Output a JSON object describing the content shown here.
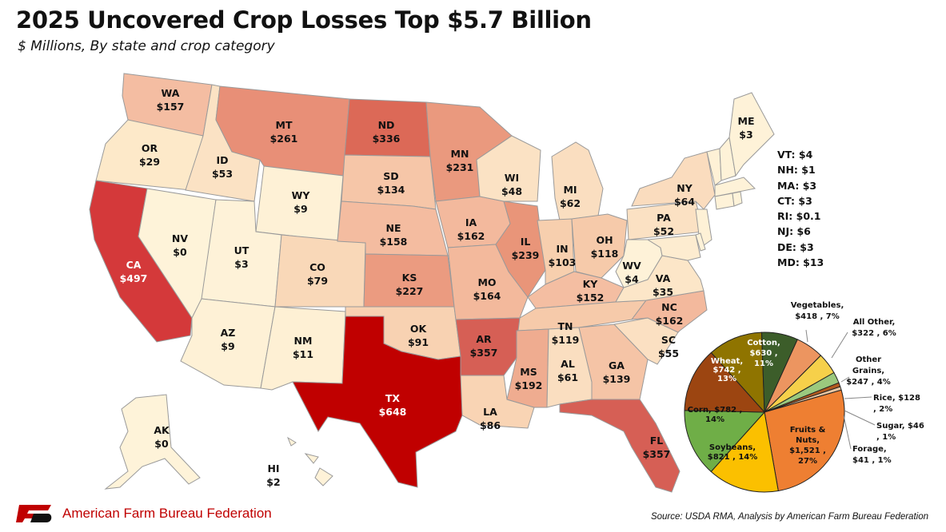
{
  "header": {
    "title": "2025 Uncovered Crop Losses Top $5.7 Billion",
    "subtitle": "$ Millions, By state and crop category"
  },
  "colors": {
    "scale_low": "#fdebc9",
    "scale_mid": "#ef9a7a",
    "scale_high": "#c00000"
  },
  "states": {
    "WA": {
      "abbr": "WA",
      "value": "$157",
      "color": "#f4bda2"
    },
    "OR": {
      "abbr": "OR",
      "value": "$29",
      "color": "#fde9c9"
    },
    "CA": {
      "abbr": "CA",
      "value": "$497",
      "color": "#d4393a"
    },
    "ID": {
      "abbr": "ID",
      "value": "$53",
      "color": "#fbe2c4"
    },
    "NV": {
      "abbr": "NV",
      "value": "$0",
      "color": "#fef3d9"
    },
    "MT": {
      "abbr": "MT",
      "value": "$261",
      "color": "#e88f77"
    },
    "WY": {
      "abbr": "WY",
      "value": "$9",
      "color": "#fef1d6"
    },
    "UT": {
      "abbr": "UT",
      "value": "$3",
      "color": "#fef2d8"
    },
    "AZ": {
      "abbr": "AZ",
      "value": "$9",
      "color": "#fef1d6"
    },
    "CO": {
      "abbr": "CO",
      "value": "$79",
      "color": "#f9d8b8"
    },
    "NM": {
      "abbr": "NM",
      "value": "$11",
      "color": "#fef0d4"
    },
    "ND": {
      "abbr": "ND",
      "value": "$336",
      "color": "#dc6957"
    },
    "SD": {
      "abbr": "SD",
      "value": "$134",
      "color": "#f6c6a8"
    },
    "NE": {
      "abbr": "NE",
      "value": "$158",
      "color": "#f4bca0"
    },
    "KS": {
      "abbr": "KS",
      "value": "$227",
      "color": "#eb9b80"
    },
    "OK": {
      "abbr": "OK",
      "value": "$91",
      "color": "#f8d2b2"
    },
    "TX": {
      "abbr": "TX",
      "value": "$648",
      "color": "#c00000"
    },
    "MN": {
      "abbr": "MN",
      "value": "$231",
      "color": "#ea997e"
    },
    "IA": {
      "abbr": "IA",
      "value": "$162",
      "color": "#f3b99d"
    },
    "MO": {
      "abbr": "MO",
      "value": "$164",
      "color": "#f3b99c"
    },
    "AR": {
      "abbr": "AR",
      "value": "$357",
      "color": "#d65f55"
    },
    "LA": {
      "abbr": "LA",
      "value": "$86",
      "color": "#f9d4b4"
    },
    "WI": {
      "abbr": "WI",
      "value": "$48",
      "color": "#fbe2c4"
    },
    "IL": {
      "abbr": "IL",
      "value": "$239",
      "color": "#e99579"
    },
    "MI": {
      "abbr": "MI",
      "value": "$62",
      "color": "#fadec0"
    },
    "IN": {
      "abbr": "IN",
      "value": "$103",
      "color": "#f7cfae"
    },
    "OH": {
      "abbr": "OH",
      "value": "$118",
      "color": "#f6caaa"
    },
    "KY": {
      "abbr": "KY",
      "value": "$152",
      "color": "#f4bea2"
    },
    "TN": {
      "abbr": "TN",
      "value": "$119",
      "color": "#f6caaa"
    },
    "MS": {
      "abbr": "MS",
      "value": "$192",
      "color": "#efac90"
    },
    "AL": {
      "abbr": "AL",
      "value": "$61",
      "color": "#fadec0"
    },
    "GA": {
      "abbr": "GA",
      "value": "$139",
      "color": "#f5c4a6"
    },
    "FL": {
      "abbr": "FL",
      "value": "$357",
      "color": "#d65f55"
    },
    "SC": {
      "abbr": "SC",
      "value": "$55",
      "color": "#fbe0c2"
    },
    "NC": {
      "abbr": "NC",
      "value": "$162",
      "color": "#f3b99d"
    },
    "VA": {
      "abbr": "VA",
      "value": "$35",
      "color": "#fce6c8"
    },
    "WV": {
      "abbr": "WV",
      "value": "$4",
      "color": "#fef2d8"
    },
    "PA": {
      "abbr": "PA",
      "value": "$52",
      "color": "#fbe1c3"
    },
    "NY": {
      "abbr": "NY",
      "value": "$64",
      "color": "#fadcbe"
    },
    "ME": {
      "abbr": "ME",
      "value": "$3",
      "color": "#fef2d8"
    },
    "AK": {
      "abbr": "AK",
      "value": "$0",
      "color": "#fef3d9"
    },
    "HI": {
      "abbr": "HI",
      "value": "$2",
      "color": "#fef2d8"
    }
  },
  "small_states": [
    "VT: $4",
    "NH: $1",
    "MA: $3",
    "CT: $3",
    "RI: $0.1",
    "NJ: $6",
    "DE: $3",
    "MD: $13"
  ],
  "chart_data": {
    "type": "pie",
    "title": "",
    "unit": "$ Millions",
    "slices": [
      {
        "name": "Cotton",
        "value": 630,
        "percent": 11,
        "color": "#8f7400"
      },
      {
        "name": "Vegetables",
        "value": 418,
        "percent": 7,
        "color": "#3c5d2a"
      },
      {
        "name": "All Other",
        "value": 322,
        "percent": 6,
        "color": "#ec9560"
      },
      {
        "name": "Other Grains",
        "value": 247,
        "percent": 4,
        "color": "#f6d04a"
      },
      {
        "name": "Rice",
        "value": 128,
        "percent": 2,
        "color": "#9bc97e"
      },
      {
        "name": "Sugar",
        "value": 46,
        "percent": 1,
        "color": "#b35a1e"
      },
      {
        "name": "Forage",
        "value": 41,
        "percent": 1,
        "color": "#e9c7a3"
      },
      {
        "name": "Fruits & Nuts",
        "value": 1521,
        "percent": 27,
        "color": "#ee7f32"
      },
      {
        "name": "Soybeans",
        "value": 821,
        "percent": 14,
        "color": "#fbc000"
      },
      {
        "name": "Corn",
        "value": 782,
        "percent": 14,
        "color": "#6fae47"
      },
      {
        "name": "Wheat",
        "value": 742,
        "percent": 13,
        "color": "#9c4511"
      }
    ],
    "labels": {
      "cotton": [
        "Cotton,",
        "$630 ,",
        "11%"
      ],
      "wheat": [
        "Wheat,",
        "$742 ,",
        "13%"
      ],
      "corn": [
        "Corn,  $782 ,",
        "14%"
      ],
      "soybeans": [
        "Soybeans,",
        "$821 , 14%"
      ],
      "fruits": [
        "Fruits &",
        "Nuts,",
        "$1,521 ,",
        "27%"
      ],
      "vegetables": [
        "Vegetables,",
        "$418 , 7%"
      ],
      "allother": [
        "All Other,",
        "$322 , 6%"
      ],
      "othergrains": [
        "Other",
        "Grains,",
        "$247 , 4%"
      ],
      "rice": [
        "Rice,  $128",
        ", 2%"
      ],
      "sugar": [
        "Sugar,  $46",
        ", 1%"
      ],
      "forage": [
        "Forage,",
        "$41 , 1%"
      ]
    }
  },
  "footer": {
    "org": "American Farm Bureau Federation",
    "logo_text": "FB",
    "source": "Source: USDA RMA, Analysis by American Farm Bureau Federation"
  }
}
